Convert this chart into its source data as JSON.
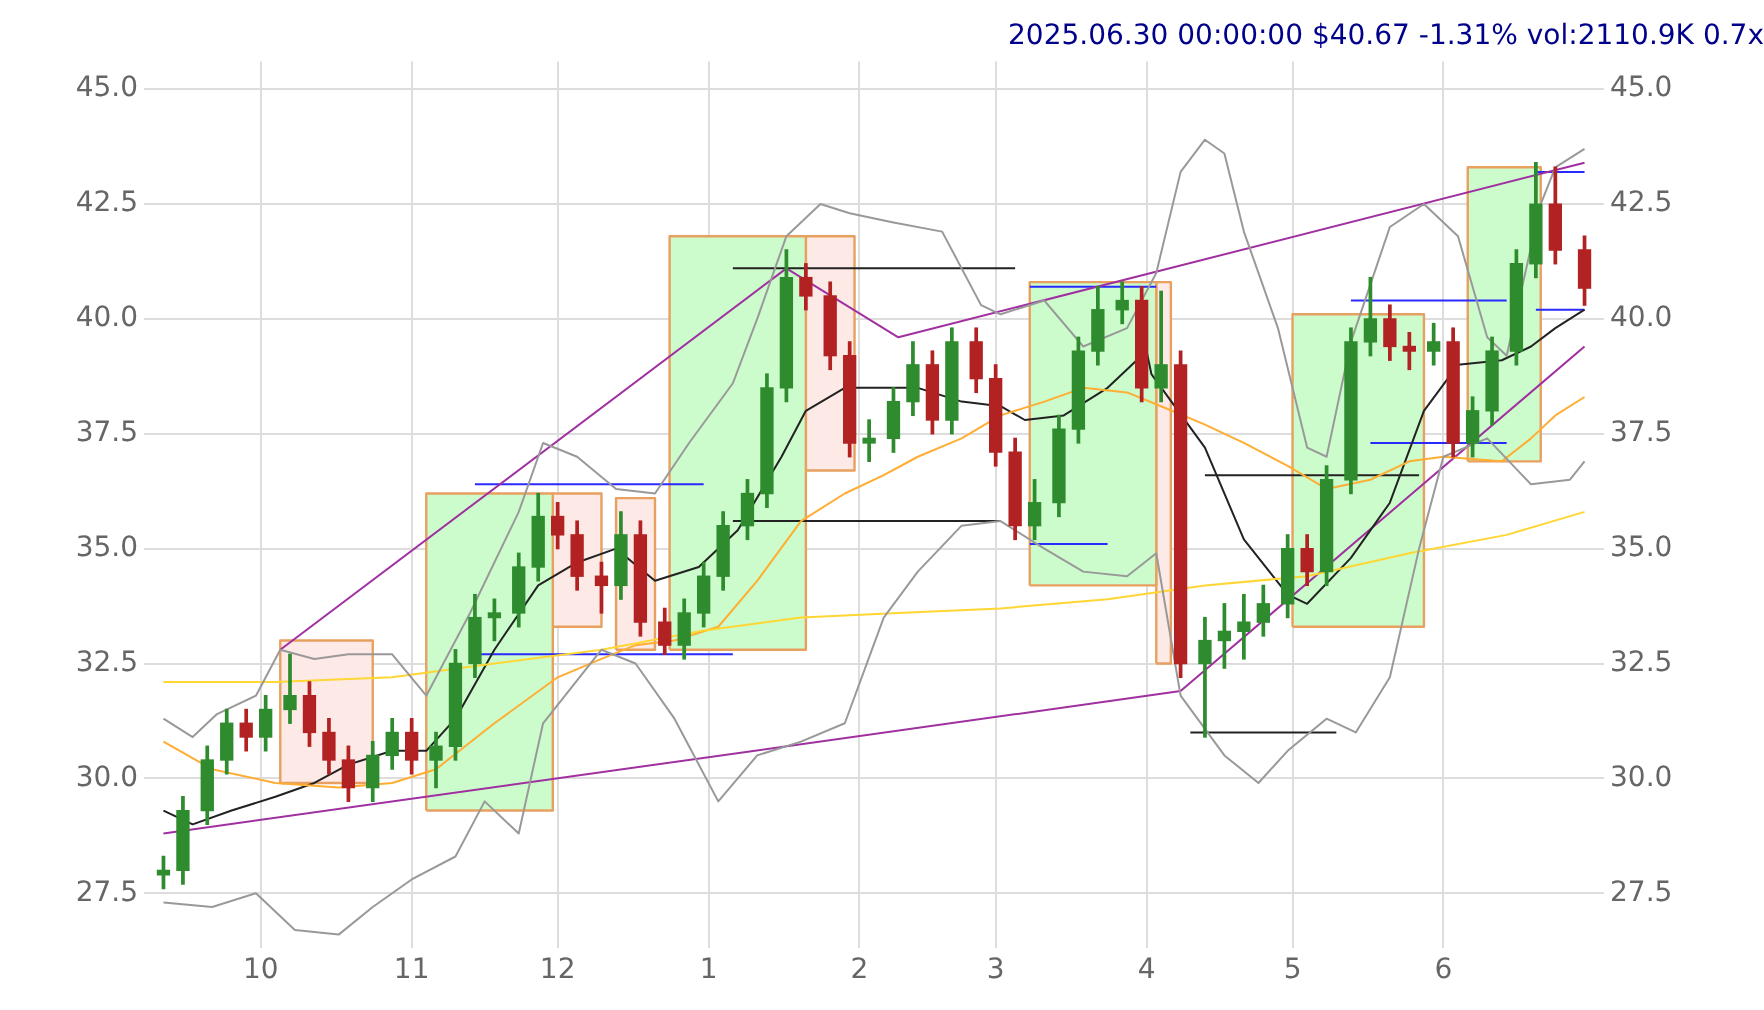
{
  "chart_data": {
    "type": "candlestick",
    "title": "2025.06.30 00:00:00 $40.67 -1.31% vol:2110.9K 0.7x",
    "x": [
      "2024-09-11",
      "2024-09-15",
      "2024-09-20",
      "2024-09-24",
      "2024-09-28",
      "2024-10-02",
      "2024-10-07",
      "2024-10-11",
      "2024-10-15",
      "2024-10-19",
      "2024-10-24",
      "2024-10-28",
      "2024-11-01",
      "2024-11-06",
      "2024-11-10",
      "2024-11-14",
      "2024-11-18",
      "2024-11-23",
      "2024-11-27",
      "2024-12-01",
      "2024-12-05",
      "2024-12-10",
      "2024-12-14",
      "2024-12-18",
      "2024-12-23",
      "2024-12-27",
      "2024-12-31",
      "2025-01-04",
      "2025-01-09",
      "2025-01-13",
      "2025-01-17",
      "2025-01-21",
      "2025-01-26",
      "2025-01-30",
      "2025-02-03",
      "2025-02-08",
      "2025-02-12",
      "2025-02-16",
      "2025-02-20",
      "2025-02-25",
      "2025-03-01",
      "2025-03-05",
      "2025-03-09",
      "2025-03-14",
      "2025-03-18",
      "2025-03-22",
      "2025-03-27",
      "2025-03-31",
      "2025-04-04",
      "2025-04-08",
      "2025-04-13",
      "2025-04-17",
      "2025-04-21",
      "2025-04-25",
      "2025-04-30",
      "2025-05-04",
      "2025-05-08",
      "2025-05-13",
      "2025-05-17",
      "2025-05-21",
      "2025-05-25",
      "2025-05-30",
      "2025-06-03",
      "2025-06-07",
      "2025-06-11",
      "2025-06-16",
      "2025-06-20",
      "2025-06-24",
      "2025-06-30"
    ],
    "ohlc": [
      [
        27.9,
        28.3,
        27.6,
        28.0
      ],
      [
        28.0,
        29.6,
        27.7,
        29.3
      ],
      [
        29.3,
        30.7,
        29.0,
        30.4
      ],
      [
        30.4,
        31.5,
        30.1,
        31.2
      ],
      [
        31.2,
        31.5,
        30.6,
        30.9
      ],
      [
        30.9,
        31.8,
        30.6,
        31.5
      ],
      [
        31.5,
        32.7,
        31.2,
        31.8
      ],
      [
        31.8,
        32.1,
        30.7,
        31.0
      ],
      [
        31.0,
        31.3,
        30.1,
        30.4
      ],
      [
        30.4,
        30.7,
        29.5,
        29.8
      ],
      [
        29.8,
        30.8,
        29.5,
        30.5
      ],
      [
        30.5,
        31.3,
        30.2,
        31.0
      ],
      [
        31.0,
        31.3,
        30.1,
        30.4
      ],
      [
        30.4,
        31.0,
        29.8,
        30.7
      ],
      [
        30.7,
        32.8,
        30.4,
        32.5
      ],
      [
        32.5,
        34.0,
        32.2,
        33.5
      ],
      [
        33.5,
        33.9,
        33.0,
        33.6
      ],
      [
        33.6,
        34.9,
        33.3,
        34.6
      ],
      [
        34.6,
        36.2,
        34.3,
        35.7
      ],
      [
        35.7,
        36.0,
        35.0,
        35.3
      ],
      [
        35.3,
        35.6,
        34.1,
        34.4
      ],
      [
        34.4,
        34.7,
        33.6,
        34.2
      ],
      [
        34.2,
        35.8,
        33.9,
        35.3
      ],
      [
        35.3,
        35.6,
        33.1,
        33.4
      ],
      [
        33.4,
        33.7,
        32.7,
        32.9
      ],
      [
        32.9,
        33.9,
        32.6,
        33.6
      ],
      [
        33.6,
        34.7,
        33.3,
        34.4
      ],
      [
        34.4,
        35.8,
        34.1,
        35.5
      ],
      [
        35.5,
        36.5,
        35.2,
        36.2
      ],
      [
        36.2,
        38.8,
        35.9,
        38.5
      ],
      [
        38.5,
        41.5,
        38.2,
        40.9
      ],
      [
        40.9,
        41.2,
        40.2,
        40.5
      ],
      [
        40.5,
        40.8,
        38.9,
        39.2
      ],
      [
        39.2,
        39.5,
        37.0,
        37.3
      ],
      [
        37.3,
        37.8,
        36.9,
        37.4
      ],
      [
        37.4,
        38.5,
        37.1,
        38.2
      ],
      [
        38.2,
        39.5,
        37.9,
        39.0
      ],
      [
        39.0,
        39.3,
        37.5,
        37.8
      ],
      [
        37.8,
        39.8,
        37.5,
        39.5
      ],
      [
        39.5,
        39.8,
        38.4,
        38.7
      ],
      [
        38.7,
        39.0,
        36.8,
        37.1
      ],
      [
        37.1,
        37.4,
        35.2,
        35.5
      ],
      [
        35.5,
        36.5,
        35.2,
        36.0
      ],
      [
        36.0,
        37.9,
        35.7,
        37.6
      ],
      [
        37.6,
        39.6,
        37.3,
        39.3
      ],
      [
        39.3,
        40.7,
        39.0,
        40.2
      ],
      [
        40.2,
        40.8,
        39.9,
        40.4
      ],
      [
        40.4,
        40.7,
        38.2,
        38.5
      ],
      [
        38.5,
        40.6,
        38.2,
        39.0
      ],
      [
        39.0,
        39.3,
        32.2,
        32.5
      ],
      [
        32.5,
        33.5,
        30.9,
        33.0
      ],
      [
        33.0,
        33.8,
        32.4,
        33.2
      ],
      [
        33.2,
        34.0,
        32.6,
        33.4
      ],
      [
        33.4,
        34.2,
        33.1,
        33.8
      ],
      [
        33.8,
        35.3,
        33.5,
        35.0
      ],
      [
        35.0,
        35.3,
        34.2,
        34.5
      ],
      [
        34.5,
        36.8,
        34.2,
        36.5
      ],
      [
        36.5,
        39.8,
        36.2,
        39.5
      ],
      [
        39.5,
        40.9,
        39.2,
        40.0
      ],
      [
        40.0,
        40.3,
        39.1,
        39.4
      ],
      [
        39.4,
        39.7,
        38.9,
        39.3
      ],
      [
        39.3,
        39.9,
        39.0,
        39.5
      ],
      [
        39.5,
        39.8,
        37.0,
        37.3
      ],
      [
        37.3,
        38.3,
        37.0,
        38.0
      ],
      [
        38.0,
        39.6,
        37.7,
        39.3
      ],
      [
        39.3,
        41.5,
        39.0,
        41.2
      ],
      [
        41.2,
        43.4,
        40.9,
        42.5
      ],
      [
        42.5,
        43.3,
        41.2,
        41.5
      ],
      [
        41.5,
        41.8,
        40.3,
        40.67
      ]
    ],
    "colors": [
      "#2e8b2e",
      "#2e8b2e",
      "#2e8b2e",
      "#2e8b2e",
      "#b22222",
      "#2e8b2e",
      "#2e8b2e",
      "#b22222",
      "#b22222",
      "#b22222",
      "#2e8b2e",
      "#2e8b2e",
      "#b22222",
      "#2e8b2e",
      "#2e8b2e",
      "#2e8b2e",
      "#2e8b2e",
      "#2e8b2e",
      "#2e8b2e",
      "#b22222",
      "#b22222",
      "#b22222",
      "#2e8b2e",
      "#b22222",
      "#b22222",
      "#2e8b2e",
      "#2e8b2e",
      "#2e8b2e",
      "#2e8b2e",
      "#2e8b2e",
      "#2e8b2e",
      "#b22222",
      "#b22222",
      "#b22222",
      "#2e8b2e",
      "#2e8b2e",
      "#2e8b2e",
      "#b22222",
      "#2e8b2e",
      "#b22222",
      "#b22222",
      "#b22222",
      "#2e8b2e",
      "#2e8b2e",
      "#2e8b2e",
      "#2e8b2e",
      "#2e8b2e",
      "#b22222",
      "#2e8b2e",
      "#b22222",
      "#2e8b2e",
      "#2e8b2e",
      "#2e8b2e",
      "#2e8b2e",
      "#2e8b2e",
      "#b22222",
      "#2e8b2e",
      "#2e8b2e",
      "#2e8b2e",
      "#b22222",
      "#b22222",
      "#2e8b2e",
      "#b22222",
      "#2e8b2e",
      "#2e8b2e",
      "#2e8b2e",
      "#2e8b2e",
      "#b22222",
      "#b22222"
    ],
    "series": [
      {
        "type": "area",
        "color": "#fdeae6",
        "x": [
          "2024-10-05",
          "2024-10-05",
          "2024-10-24",
          "2024-10-24",
          "2024-10-05"
        ],
        "values": [
          29.9,
          33.0,
          33.0,
          29.9,
          29.9
        ]
      },
      {
        "type": "area",
        "color": "#ccfccc",
        "x": [
          "2024-11-04",
          "2024-11-04",
          "2024-11-30",
          "2024-11-30",
          "2024-11-04"
        ],
        "values": [
          29.3,
          36.2,
          36.2,
          29.3,
          29.3
        ]
      },
      {
        "type": "area",
        "color": "#fdeae6",
        "x": [
          "2024-11-30",
          "2024-11-30",
          "2024-12-10",
          "2024-12-10",
          "2024-11-30"
        ],
        "values": [
          33.3,
          36.2,
          36.2,
          33.3,
          33.3
        ]
      },
      {
        "type": "area",
        "color": "#fdeae6",
        "x": [
          "2024-12-13",
          "2024-12-13",
          "2024-12-21",
          "2024-12-21",
          "2024-12-13"
        ],
        "values": [
          32.8,
          36.1,
          36.1,
          32.8,
          32.8
        ]
      },
      {
        "type": "area",
        "color": "#ccfccc",
        "x": [
          "2024-12-24",
          "2024-12-24",
          "2025-01-21",
          "2025-01-21",
          "2024-12-24"
        ],
        "values": [
          32.8,
          41.8,
          41.8,
          32.8,
          32.8
        ]
      },
      {
        "type": "area",
        "color": "#fdeae6",
        "x": [
          "2025-01-21",
          "2025-01-21",
          "2025-01-31",
          "2025-01-31",
          "2025-01-21"
        ],
        "values": [
          36.7,
          41.8,
          41.8,
          36.7,
          36.7
        ]
      },
      {
        "type": "area",
        "color": "#ccfccc",
        "x": [
          "2025-03-08",
          "2025-03-08",
          "2025-04-03",
          "2025-04-03",
          "2025-03-08"
        ],
        "values": [
          34.2,
          40.8,
          40.8,
          34.2,
          34.2
        ]
      },
      {
        "type": "area",
        "color": "#fdeae6",
        "x": [
          "2025-04-03",
          "2025-04-03",
          "2025-04-06",
          "2025-04-06",
          "2025-04-03"
        ],
        "values": [
          32.5,
          40.8,
          40.8,
          32.5,
          32.5
        ]
      },
      {
        "type": "area",
        "color": "#ccfccc",
        "x": [
          "2025-05-01",
          "2025-05-01",
          "2025-05-28",
          "2025-05-28",
          "2025-05-01"
        ],
        "values": [
          33.3,
          40.1,
          40.1,
          33.3,
          33.3
        ]
      },
      {
        "type": "area",
        "color": "#ccfccc",
        "x": [
          "2025-06-06",
          "2025-06-06",
          "2025-06-21",
          "2025-06-21",
          "2025-06-06"
        ],
        "values": [
          36.9,
          43.3,
          43.3,
          36.9,
          36.9
        ]
      },
      {
        "type": "line",
        "color": "#999999",
        "x": [
          "2024-09-11",
          "2024-09-17",
          "2024-09-22",
          "2024-09-30",
          "2024-10-05",
          "2024-10-12",
          "2024-10-19",
          "2024-10-28",
          "2024-11-04",
          "2024-11-13",
          "2024-11-23",
          "2024-11-28",
          "2024-12-05",
          "2024-12-13",
          "2024-12-21",
          "2024-12-28",
          "2025-01-06",
          "2025-01-11",
          "2025-01-17",
          "2025-01-24",
          "2025-01-30",
          "2025-02-08",
          "2025-02-18",
          "2025-02-26",
          "2025-03-02",
          "2025-03-11",
          "2025-03-19",
          "2025-03-28",
          "2025-04-03",
          "2025-04-08",
          "2025-04-13",
          "2025-04-17",
          "2025-04-21",
          "2025-04-28",
          "2025-05-04",
          "2025-05-08",
          "2025-05-13",
          "2025-05-21",
          "2025-05-28",
          "2025-06-04",
          "2025-06-10",
          "2025-06-14",
          "2025-06-21",
          "2025-06-24",
          "2025-06-30"
        ],
        "values": [
          31.3,
          30.9,
          31.4,
          31.8,
          32.8,
          32.6,
          32.7,
          32.7,
          31.8,
          33.6,
          35.8,
          37.3,
          37.0,
          36.3,
          36.2,
          37.3,
          38.6,
          40.0,
          41.8,
          42.5,
          42.3,
          42.1,
          41.9,
          40.3,
          40.1,
          40.4,
          39.4,
          39.8,
          41.0,
          43.2,
          43.9,
          43.6,
          41.9,
          39.8,
          37.2,
          37.0,
          39.5,
          42.0,
          42.5,
          41.8,
          39.6,
          39.2,
          42.5,
          43.3,
          43.7
        ]
      },
      {
        "type": "line",
        "color": "#999999",
        "x": [
          "2024-09-11",
          "2024-09-21",
          "2024-09-30",
          "2024-10-08",
          "2024-10-17",
          "2024-10-24",
          "2024-11-01",
          "2024-11-10",
          "2024-11-16",
          "2024-11-23",
          "2024-11-28",
          "2024-12-10",
          "2024-12-17",
          "2024-12-25",
          "2025-01-03",
          "2025-01-11",
          "2025-01-20",
          "2025-01-29",
          "2025-02-06",
          "2025-02-13",
          "2025-02-22",
          "2025-03-02",
          "2025-03-11",
          "2025-03-19",
          "2025-03-28",
          "2025-04-03",
          "2025-04-08",
          "2025-04-17",
          "2025-04-24",
          "2025-04-30",
          "2025-05-08",
          "2025-05-14",
          "2025-05-21",
          "2025-05-27",
          "2025-06-01",
          "2025-06-10",
          "2025-06-19",
          "2025-06-27",
          "2025-06-30"
        ],
        "values": [
          27.3,
          27.2,
          27.5,
          26.7,
          26.6,
          27.2,
          27.8,
          28.3,
          29.5,
          28.8,
          31.2,
          32.8,
          32.5,
          31.3,
          29.5,
          30.5,
          30.8,
          31.2,
          33.5,
          34.5,
          35.5,
          35.6,
          35.0,
          34.5,
          34.4,
          34.9,
          31.8,
          30.5,
          29.9,
          30.6,
          31.3,
          31.0,
          32.2,
          35.0,
          37.0,
          37.4,
          36.4,
          36.5,
          36.9
        ]
      },
      {
        "type": "line",
        "color": "#ffd633",
        "x": [
          "2024-09-11",
          "2024-10-04",
          "2024-10-28",
          "2024-11-18",
          "2024-12-10",
          "2024-12-30",
          "2025-01-20",
          "2025-02-09",
          "2025-03-02",
          "2025-03-24",
          "2025-04-13",
          "2025-05-04",
          "2025-05-25",
          "2025-06-14",
          "2025-06-30"
        ],
        "values": [
          32.1,
          32.1,
          32.2,
          32.5,
          32.8,
          33.2,
          33.5,
          33.6,
          33.7,
          33.9,
          34.2,
          34.4,
          34.9,
          35.3,
          35.8
        ]
      },
      {
        "type": "line",
        "color": "#ffad33",
        "x": [
          "2024-09-11",
          "2024-09-21",
          "2024-10-04",
          "2024-10-17",
          "2024-10-28",
          "2024-11-06",
          "2024-11-18",
          "2024-12-01",
          "2024-12-10",
          "2024-12-17",
          "2024-12-25",
          "2025-01-03",
          "2025-01-11",
          "2025-01-20",
          "2025-01-29",
          "2025-02-06",
          "2025-02-13",
          "2025-02-22",
          "2025-03-02",
          "2025-03-11",
          "2025-03-19",
          "2025-03-28",
          "2025-04-04",
          "2025-04-13",
          "2025-04-21",
          "2025-04-30",
          "2025-05-08",
          "2025-05-17",
          "2025-05-25",
          "2025-06-01",
          "2025-06-13",
          "2025-06-19",
          "2025-06-24",
          "2025-06-30"
        ],
        "values": [
          30.8,
          30.2,
          29.9,
          29.8,
          29.9,
          30.2,
          31.2,
          32.2,
          32.6,
          32.9,
          33.0,
          33.3,
          34.3,
          35.6,
          36.2,
          36.6,
          37.0,
          37.4,
          37.9,
          38.2,
          38.5,
          38.4,
          38.1,
          37.7,
          37.3,
          36.8,
          36.3,
          36.5,
          36.9,
          37.0,
          36.9,
          37.4,
          37.9,
          38.3
        ]
      },
      {
        "type": "line",
        "color": "#222222",
        "x": [
          "2024-09-11",
          "2024-09-17",
          "2024-09-25",
          "2024-10-04",
          "2024-10-12",
          "2024-10-19",
          "2024-10-28",
          "2024-11-04",
          "2024-11-10",
          "2024-11-18",
          "2024-11-27",
          "2024-12-05",
          "2024-12-13",
          "2024-12-21",
          "2024-12-30",
          "2025-01-07",
          "2025-01-16",
          "2025-01-21",
          "2025-01-29",
          "2025-02-06",
          "2025-02-13",
          "2025-02-22",
          "2025-03-02",
          "2025-03-07",
          "2025-03-15",
          "2025-03-24",
          "2025-04-01",
          "2025-04-02",
          "2025-04-13",
          "2025-04-21",
          "2025-04-30",
          "2025-05-04",
          "2025-05-13",
          "2025-05-21",
          "2025-05-28",
          "2025-06-04",
          "2025-06-13",
          "2025-06-19",
          "2025-06-24",
          "2025-06-30"
        ],
        "values": [
          29.3,
          29.0,
          29.3,
          29.6,
          29.9,
          30.3,
          30.6,
          30.6,
          31.3,
          32.8,
          34.2,
          34.7,
          35.0,
          34.3,
          34.6,
          35.4,
          37.0,
          38.0,
          38.5,
          38.5,
          38.5,
          38.2,
          38.1,
          37.8,
          37.9,
          38.5,
          39.3,
          38.8,
          37.2,
          35.2,
          34.0,
          33.8,
          34.8,
          36.0,
          38.0,
          39.0,
          39.1,
          39.4,
          39.8,
          40.2
        ]
      },
      {
        "type": "line",
        "color": "#a030a0",
        "x": [
          "2024-10-05",
          "2025-01-17",
          "2025-02-09",
          "2025-06-30"
        ],
        "values": [
          32.8,
          41.1,
          39.6,
          43.4
        ]
      },
      {
        "type": "line",
        "color": "#a030a0",
        "x": [
          "2024-09-11",
          "2025-04-08",
          "2025-06-30"
        ],
        "values": [
          28.8,
          31.9,
          39.4
        ]
      },
      {
        "type": "line",
        "color": "#2a2aff",
        "x": [
          "2024-11-14",
          "2024-12-31"
        ],
        "values": [
          36.4,
          36.4
        ]
      },
      {
        "type": "line",
        "color": "#2a2aff",
        "x": [
          "2024-11-14",
          "2025-01-06"
        ],
        "values": [
          32.7,
          32.7
        ]
      },
      {
        "type": "line",
        "color": "#222222",
        "x": [
          "2025-01-06",
          "2025-03-05"
        ],
        "values": [
          41.1,
          41.1
        ]
      },
      {
        "type": "line",
        "color": "#222222",
        "x": [
          "2025-01-06",
          "2025-03-02"
        ],
        "values": [
          35.6,
          35.6
        ]
      },
      {
        "type": "line",
        "color": "#2a2aff",
        "x": [
          "2025-03-08",
          "2025-03-24"
        ],
        "values": [
          35.1,
          35.1
        ]
      },
      {
        "type": "line",
        "color": "#2a2aff",
        "x": [
          "2025-03-08",
          "2025-04-03"
        ],
        "values": [
          40.7,
          40.7
        ]
      },
      {
        "type": "line",
        "color": "#222222",
        "x": [
          "2025-04-10",
          "2025-05-10"
        ],
        "values": [
          31.0,
          31.0
        ]
      },
      {
        "type": "line",
        "color": "#222222",
        "x": [
          "2025-04-13",
          "2025-05-27"
        ],
        "values": [
          36.6,
          36.6
        ]
      },
      {
        "type": "line",
        "color": "#2a2aff",
        "x": [
          "2025-05-17",
          "2025-06-14"
        ],
        "values": [
          37.3,
          37.3
        ]
      },
      {
        "type": "line",
        "color": "#2a2aff",
        "x": [
          "2025-05-13",
          "2025-06-14"
        ],
        "values": [
          40.4,
          40.4
        ]
      },
      {
        "type": "line",
        "color": "#2a2aff",
        "x": [
          "2025-06-20",
          "2025-06-30"
        ],
        "values": [
          43.2,
          43.2
        ]
      },
      {
        "type": "line",
        "color": "#2a2aff",
        "x": [
          "2025-06-20",
          "2025-06-30"
        ],
        "values": [
          40.2,
          40.2
        ]
      }
    ],
    "xlim": [
      "2024-09-07",
      "2025-07-04"
    ],
    "xticks": [
      {
        "value": "2024-10",
        "label": "10"
      },
      {
        "value": "2024-11",
        "label": "11"
      },
      {
        "value": "2024-12",
        "label": "12"
      },
      {
        "value": "2025-01",
        "label": "1"
      },
      {
        "value": "2025-02",
        "label": "2"
      },
      {
        "value": "2025-03",
        "label": "3"
      },
      {
        "value": "2025-04",
        "label": "4"
      },
      {
        "value": "2025-05",
        "label": "5"
      },
      {
        "value": "2025-06",
        "label": "6"
      }
    ],
    "ylim": [
      26.3,
      45.6
    ],
    "yticks": [
      27.5,
      {
        "value": 30,
        "label": "30.0"
      },
      32.5,
      {
        "value": 35,
        "label": "35.0"
      },
      37.5,
      {
        "value": 40,
        "label": "40.0"
      },
      42.5,
      {
        "value": 45,
        "label": "45.0"
      }
    ],
    "y2lim": [
      26.3,
      45.6
    ],
    "y2ticks": [
      27.5,
      {
        "value": 30,
        "label": "30.0"
      },
      32.5,
      {
        "value": 35,
        "label": "35.0"
      },
      37.5,
      {
        "value": 40,
        "label": "40.0"
      },
      42.5,
      {
        "value": 45,
        "label": "45.0"
      }
    ],
    "grid": true,
    "legend": false,
    "marker": "none",
    "line_style": "solid"
  }
}
